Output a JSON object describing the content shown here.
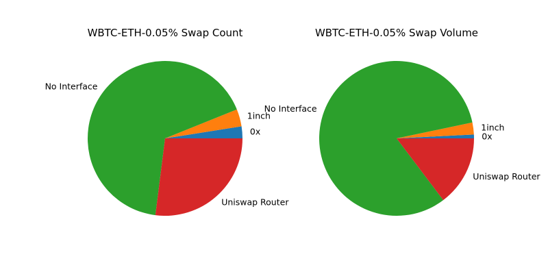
{
  "chart_data": [
    {
      "type": "pie",
      "title": "WBTC-ETH-0.05% Swap Count",
      "categories": [
        "0x",
        "1inch",
        "No Interface",
        "Uniswap Router"
      ],
      "values": [
        2.5,
        3.6,
        66.9,
        27.0
      ],
      "colors": [
        "#1f77b4",
        "#ff7f0e",
        "#2ca02c",
        "#d62728"
      ],
      "start_angle": 0,
      "direction": "counterclockwise"
    },
    {
      "type": "pie",
      "title": "WBTC-ETH-0.05% Swap Volume",
      "categories": [
        "0x",
        "1inch",
        "No Interface",
        "Uniswap Router"
      ],
      "values": [
        0.8,
        2.5,
        82.0,
        14.7
      ],
      "colors": [
        "#1f77b4",
        "#ff7f0e",
        "#2ca02c",
        "#d62728"
      ],
      "start_angle": 0,
      "direction": "counterclockwise"
    }
  ]
}
